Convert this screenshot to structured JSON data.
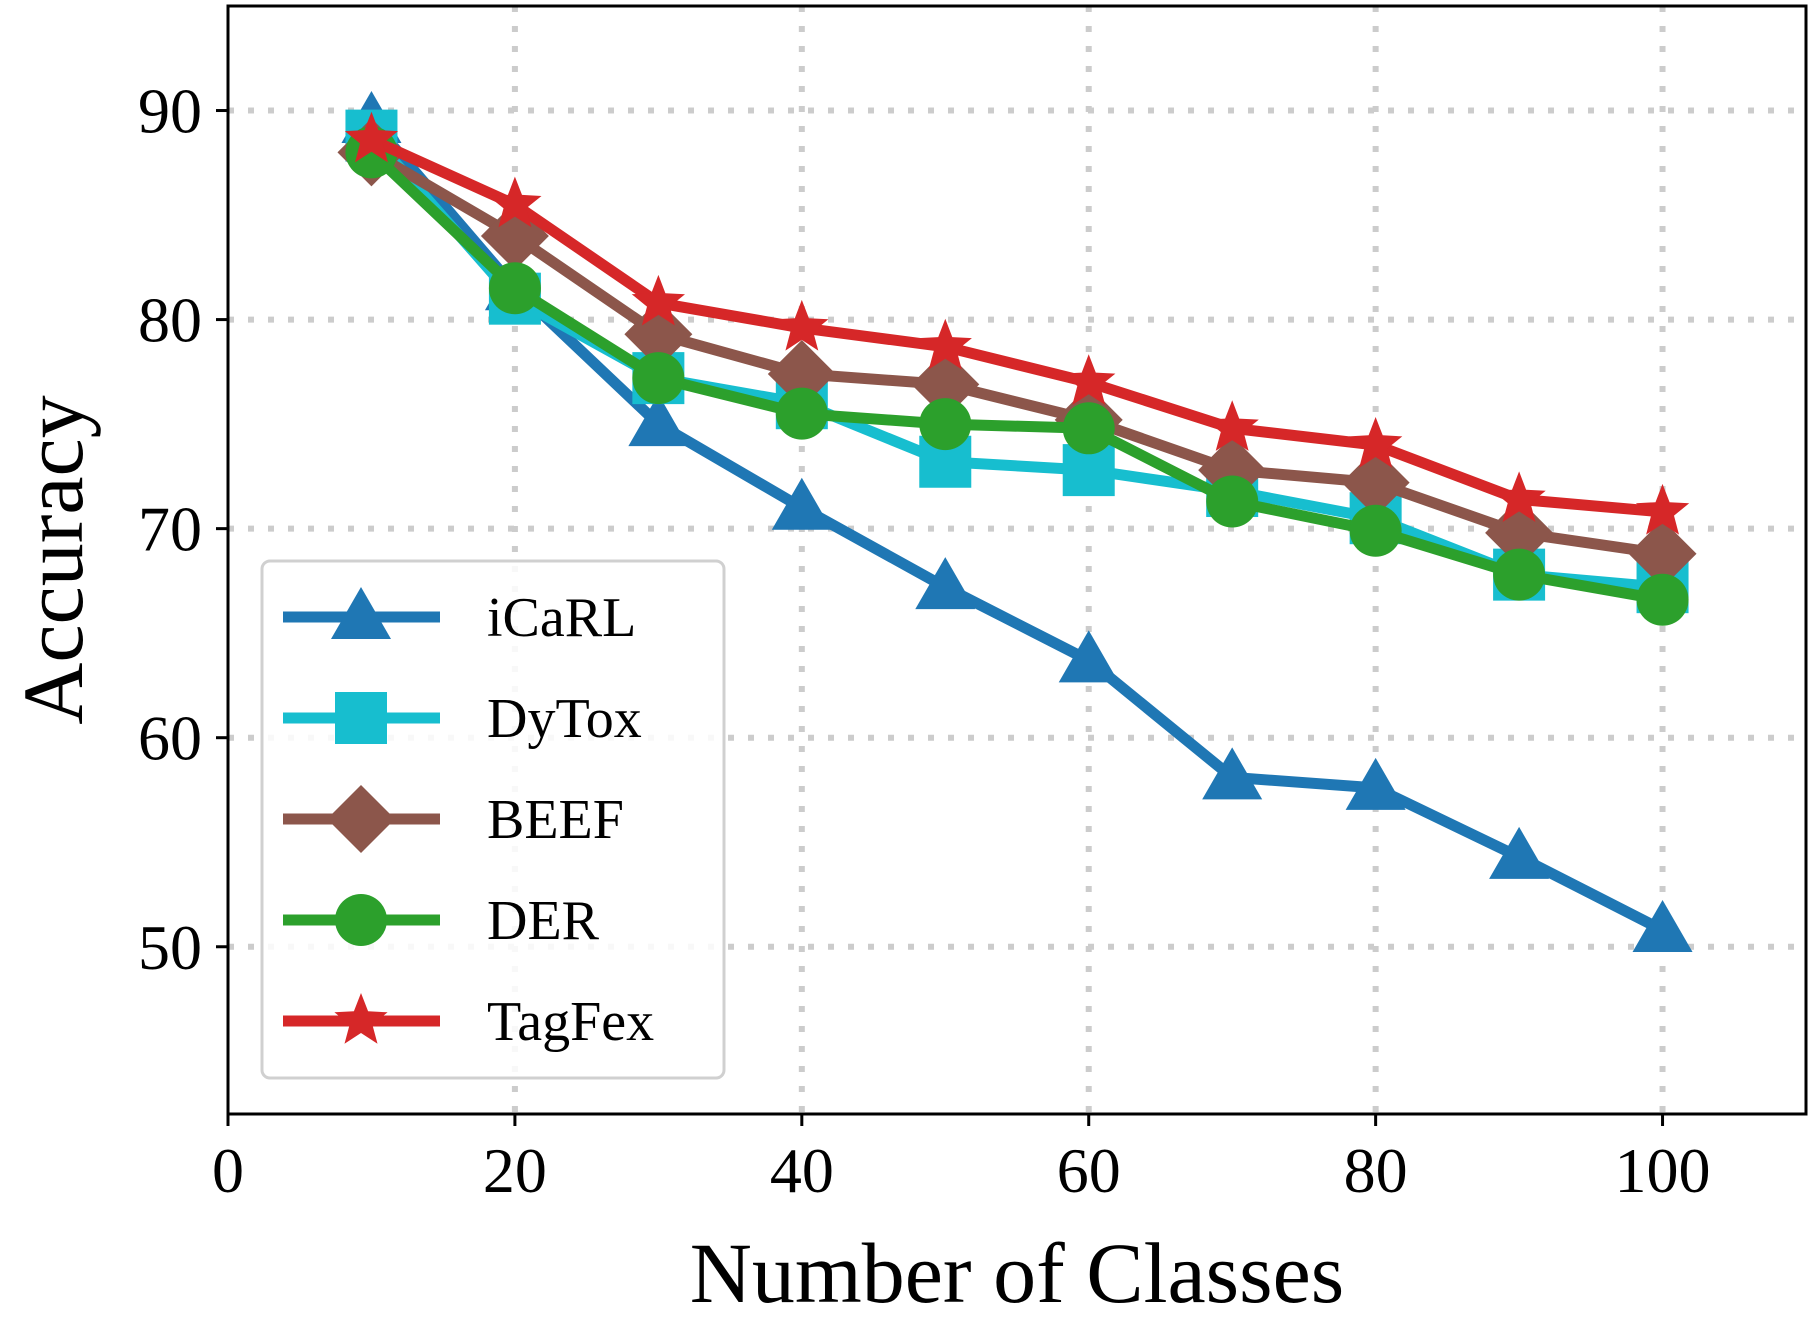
{
  "chart_data": {
    "type": "line",
    "xlabel": "Number of Classes",
    "ylabel": "Accuracy",
    "xlim": [
      0,
      110
    ],
    "ylim": [
      42,
      95
    ],
    "x_ticks": [
      0,
      20,
      40,
      60,
      80,
      100
    ],
    "y_ticks": [
      50,
      60,
      70,
      80,
      90
    ],
    "x_tick_labels": [
      "0",
      "20",
      "40",
      "60",
      "80",
      "100"
    ],
    "y_tick_labels": [
      "50",
      "60",
      "70",
      "80",
      "90"
    ],
    "grid": true,
    "legend_position": "lower-left",
    "x": [
      10,
      20,
      30,
      40,
      50,
      60,
      70,
      80,
      90,
      100
    ],
    "series": [
      {
        "name": "iCaRL",
        "marker": "triangle",
        "color": "#1f77b4",
        "values": [
          89.5,
          81.5,
          75.0,
          71.0,
          67.2,
          63.7,
          58.1,
          57.6,
          54.3,
          50.8
        ]
      },
      {
        "name": "DyTox",
        "marker": "square",
        "color": "#17becf",
        "values": [
          88.8,
          81.0,
          77.2,
          76.0,
          73.2,
          72.8,
          71.8,
          70.5,
          67.8,
          67.2
        ]
      },
      {
        "name": "BEEF",
        "marker": "diamond",
        "color": "#8c564b",
        "values": [
          88.0,
          84.0,
          79.3,
          77.4,
          76.9,
          75.2,
          72.8,
          72.2,
          69.8,
          68.8
        ]
      },
      {
        "name": "DER",
        "marker": "circle",
        "color": "#2ca02c",
        "values": [
          88.0,
          81.5,
          77.2,
          75.5,
          75.0,
          74.8,
          71.3,
          69.9,
          67.8,
          66.6
        ]
      },
      {
        "name": "TagFex",
        "marker": "star",
        "color": "#d62728",
        "values": [
          88.6,
          85.5,
          80.8,
          79.6,
          78.7,
          77.0,
          74.8,
          74.0,
          71.4,
          70.8
        ]
      }
    ]
  }
}
